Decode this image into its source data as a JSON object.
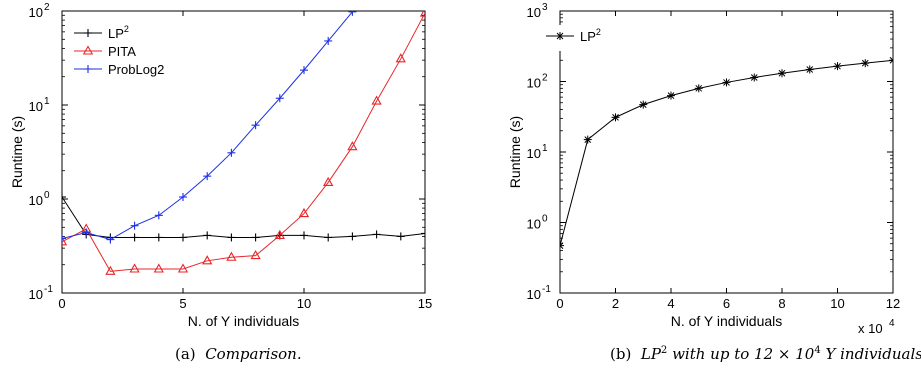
{
  "figure": {
    "caption_left": {
      "label": "(a)",
      "text": "Comparison."
    },
    "caption_right": {
      "label": "(b)",
      "text_pre": "LP",
      "text_pre_sup": "2",
      "text_mid": "with up to 12 × 10",
      "text_mid_sup": "4",
      "text_post": "Y individuals."
    }
  },
  "chart_data": [
    {
      "type": "line",
      "xlabel": "N. of Y individuals",
      "ylabel": "Runtime (s)",
      "yscale": "log",
      "xlim": [
        0,
        15
      ],
      "ylim": [
        0.1,
        100
      ],
      "xticks": [
        0,
        5,
        10,
        15
      ],
      "yticks": [
        {
          "value": 0.1,
          "base": "10",
          "exp": "-1"
        },
        {
          "value": 1,
          "base": "10",
          "exp": "0"
        },
        {
          "value": 10,
          "base": "10",
          "exp": "1"
        },
        {
          "value": 100,
          "base": "10",
          "exp": "2"
        }
      ],
      "grid": false,
      "legend_position": "top-left",
      "series": [
        {
          "name": "LP",
          "name_sup": "2",
          "color": "#000000",
          "marker": "plus",
          "x": [
            0,
            1,
            2,
            3,
            4,
            5,
            6,
            7,
            8,
            9,
            10,
            11,
            12,
            13,
            14,
            15
          ],
          "y": [
            1.05,
            0.42,
            0.39,
            0.39,
            0.39,
            0.39,
            0.41,
            0.39,
            0.39,
            0.41,
            0.41,
            0.39,
            0.4,
            0.42,
            0.4,
            0.43
          ]
        },
        {
          "name": "PITA",
          "color": "#e8262a",
          "marker": "triangle",
          "x": [
            0,
            1,
            2,
            3,
            4,
            5,
            6,
            7,
            8,
            9,
            10,
            11,
            12,
            13,
            14,
            15
          ],
          "y": [
            0.35,
            0.48,
            0.17,
            0.18,
            0.18,
            0.18,
            0.22,
            0.24,
            0.25,
            0.41,
            0.7,
            1.5,
            3.6,
            11,
            31,
            95
          ]
        },
        {
          "name": "ProbLog2",
          "color": "#1c2fe6",
          "marker": "plus",
          "x": [
            0,
            1,
            2,
            3,
            4,
            5,
            6,
            7,
            8,
            9,
            10,
            11,
            12
          ],
          "y": [
            0.38,
            0.44,
            0.37,
            0.52,
            0.67,
            1.05,
            1.75,
            3.1,
            6.1,
            11.8,
            23.5,
            48,
            98
          ]
        }
      ]
    },
    {
      "type": "line",
      "xlabel": "N. of Y individuals",
      "ylabel": "Runtime (s)",
      "yscale": "log",
      "xlim": [
        0,
        12
      ],
      "ylim": [
        0.1,
        1000
      ],
      "xticks": [
        0,
        2,
        4,
        6,
        8,
        10,
        12
      ],
      "x_multiplier": {
        "text": "x 10",
        "sup": "4"
      },
      "yticks": [
        {
          "value": 0.1,
          "base": "10",
          "exp": "-1"
        },
        {
          "value": 1,
          "base": "10",
          "exp": "0"
        },
        {
          "value": 10,
          "base": "10",
          "exp": "1"
        },
        {
          "value": 100,
          "base": "10",
          "exp": "2"
        },
        {
          "value": 1000,
          "base": "10",
          "exp": "3"
        }
      ],
      "grid": false,
      "legend_position": "top-left",
      "series": [
        {
          "name": "LP",
          "name_sup": "2",
          "color": "#000000",
          "marker": "asterisk",
          "x": [
            0,
            1,
            2,
            3,
            4,
            5,
            6,
            7,
            8,
            9,
            10,
            11,
            12
          ],
          "y": [
            0.47,
            15,
            31,
            47,
            63,
            80,
            97,
            114,
            131,
            148,
            165,
            182,
            200
          ]
        }
      ]
    }
  ]
}
